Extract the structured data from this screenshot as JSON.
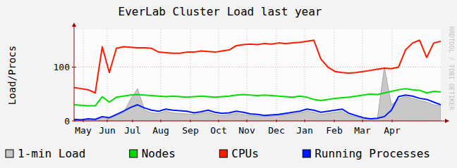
{
  "chart_data": {
    "type": "line",
    "title": "EverLab Cluster Load last year",
    "y_label": "Load/Procs",
    "annotations": [
      "RRDTOOL / TOBI OETIKER"
    ],
    "x": [
      0,
      1,
      2,
      3,
      4,
      5,
      6,
      7,
      8,
      9,
      10,
      11,
      12,
      13,
      14,
      15,
      16,
      17,
      18,
      19,
      20,
      21,
      22,
      23,
      24,
      25,
      26,
      27,
      28,
      29,
      30,
      31,
      32,
      33,
      34,
      35,
      36,
      37,
      38,
      39,
      40,
      41,
      42,
      43,
      44,
      45,
      46,
      47,
      48,
      49,
      50,
      51,
      52
    ],
    "xlim": [
      0,
      52
    ],
    "xticks": [
      {
        "value": 1.3,
        "label": "May"
      },
      {
        "value": 4.7,
        "label": "Jun"
      },
      {
        "value": 8.3,
        "label": "Jul"
      },
      {
        "value": 12.3,
        "label": "Aug"
      },
      {
        "value": 16.5,
        "label": "Sep"
      },
      {
        "value": 20.5,
        "label": "Oct"
      },
      {
        "value": 24.5,
        "label": "Nov"
      },
      {
        "value": 28.7,
        "label": "Dec"
      },
      {
        "value": 32.7,
        "label": "Jan"
      },
      {
        "value": 36.9,
        "label": "Feb"
      },
      {
        "value": 40.9,
        "label": "Mar"
      },
      {
        "value": 45.1,
        "label": "Apr"
      }
    ],
    "ylim": [
      0,
      170
    ],
    "yticks": [
      0,
      100
    ],
    "grid": true,
    "legend": "bottom",
    "series": [
      {
        "name": "1-min Load",
        "type": "area",
        "color": "#c8c8c8",
        "values": [
          2,
          1,
          3,
          2,
          6,
          4,
          10,
          15,
          40,
          60,
          20,
          15,
          14,
          18,
          15,
          14,
          13,
          12,
          14,
          16,
          12,
          10,
          12,
          14,
          12,
          10,
          9,
          8,
          9,
          10,
          12,
          13,
          15,
          18,
          16,
          12,
          14,
          16,
          18,
          10,
          8,
          4,
          3,
          4,
          100,
          30,
          40,
          45,
          42,
          38,
          35,
          30,
          28
        ]
      },
      {
        "name": "Nodes",
        "type": "line",
        "color": "#00dd00",
        "values": [
          30,
          29,
          28,
          28,
          45,
          35,
          44,
          46,
          48,
          49,
          48,
          47,
          46,
          45,
          46,
          45,
          44,
          45,
          46,
          45,
          44,
          45,
          46,
          48,
          49,
          48,
          47,
          48,
          47,
          46,
          45,
          44,
          46,
          44,
          40,
          38,
          40,
          42,
          43,
          44,
          46,
          48,
          50,
          49,
          52,
          55,
          58,
          60,
          58,
          57,
          52,
          55,
          54
        ]
      },
      {
        "name": "CPUs",
        "type": "line",
        "color": "#ff1a00",
        "values": [
          62,
          60,
          58,
          52,
          138,
          90,
          135,
          138,
          137,
          136,
          136,
          135,
          128,
          127,
          126,
          126,
          128,
          128,
          130,
          129,
          128,
          130,
          132,
          140,
          142,
          143,
          142,
          144,
          143,
          145,
          144,
          145,
          146,
          148,
          150,
          115,
          100,
          92,
          90,
          89,
          90,
          92,
          94,
          96,
          98,
          97,
          100,
          132,
          145,
          150,
          118,
          145,
          148
        ]
      },
      {
        "name": "Running Processes",
        "type": "line",
        "color": "#0018ff",
        "values": [
          3,
          2,
          4,
          3,
          8,
          6,
          12,
          18,
          25,
          30,
          24,
          20,
          18,
          22,
          20,
          19,
          18,
          15,
          17,
          20,
          16,
          14,
          15,
          18,
          16,
          13,
          12,
          10,
          11,
          12,
          14,
          16,
          18,
          22,
          20,
          16,
          18,
          20,
          22,
          14,
          10,
          6,
          4,
          5,
          8,
          20,
          45,
          48,
          46,
          42,
          40,
          35,
          30
        ]
      }
    ]
  }
}
